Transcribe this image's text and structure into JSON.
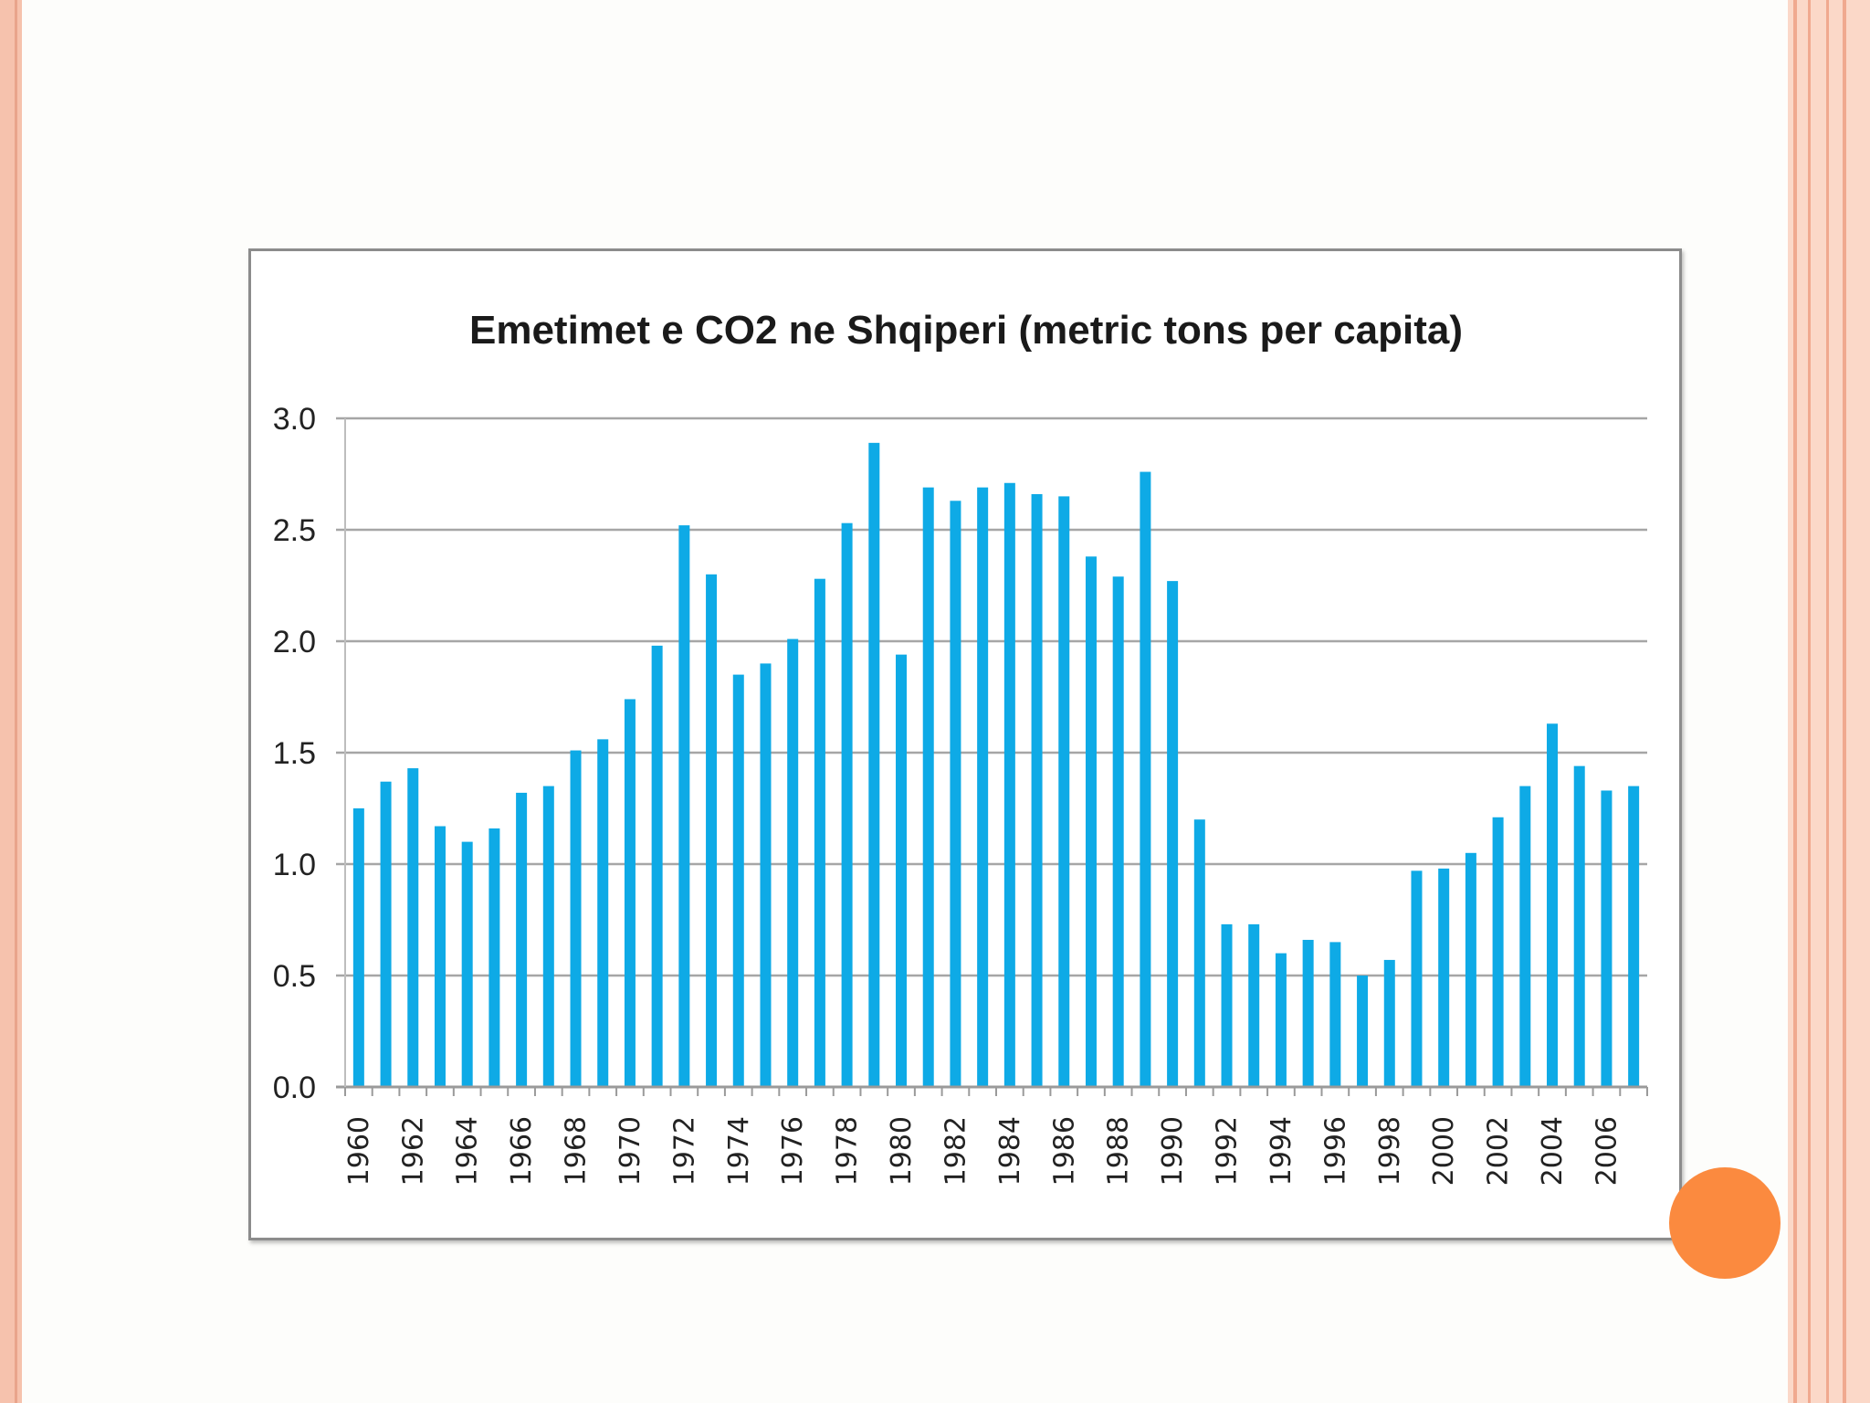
{
  "slide": {
    "accent_left": "#f6c2ad",
    "accent_right": "#fbd8c8",
    "stripe_color": "#f0a98f",
    "decor_circle_color": "#fb8a3f"
  },
  "chart_data": {
    "type": "bar",
    "title": "Emetimet e CO2 ne Shqiperi (metric tons per capita)",
    "xlabel": "",
    "ylabel": "",
    "ylim": [
      0,
      3.0
    ],
    "yticks": [
      "0.0",
      "0.5",
      "1.0",
      "1.5",
      "2.0",
      "2.5",
      "3.0"
    ],
    "bar_color": "#0eaae6",
    "grid": true,
    "categories": [
      "1960",
      "1961",
      "1962",
      "1963",
      "1964",
      "1965",
      "1966",
      "1967",
      "1968",
      "1969",
      "1970",
      "1971",
      "1972",
      "1973",
      "1974",
      "1975",
      "1976",
      "1977",
      "1978",
      "1979",
      "1980",
      "1981",
      "1982",
      "1983",
      "1984",
      "1985",
      "1986",
      "1987",
      "1988",
      "1989",
      "1990",
      "1991",
      "1992",
      "1993",
      "1994",
      "1995",
      "1996",
      "1997",
      "1998",
      "1999",
      "2000",
      "2001",
      "2002",
      "2003",
      "2004",
      "2005",
      "2006",
      "2007"
    ],
    "tick_labels": [
      "1960",
      "1962",
      "1964",
      "1966",
      "1968",
      "1970",
      "1972",
      "1974",
      "1976",
      "1978",
      "1980",
      "1982",
      "1984",
      "1986",
      "1988",
      "1990",
      "1992",
      "1994",
      "1996",
      "1998",
      "2000",
      "2002",
      "2004",
      "2006"
    ],
    "values": [
      1.25,
      1.37,
      1.43,
      1.17,
      1.1,
      1.16,
      1.32,
      1.35,
      1.51,
      1.56,
      1.74,
      1.98,
      2.52,
      2.3,
      1.85,
      1.9,
      2.01,
      2.28,
      2.53,
      2.89,
      1.94,
      2.69,
      2.63,
      2.69,
      2.71,
      2.66,
      2.65,
      2.38,
      2.29,
      2.76,
      2.27,
      1.2,
      0.73,
      0.73,
      0.6,
      0.66,
      0.65,
      0.5,
      0.57,
      0.97,
      0.98,
      1.05,
      1.21,
      1.35,
      1.63,
      1.44,
      1.33,
      1.35
    ]
  }
}
